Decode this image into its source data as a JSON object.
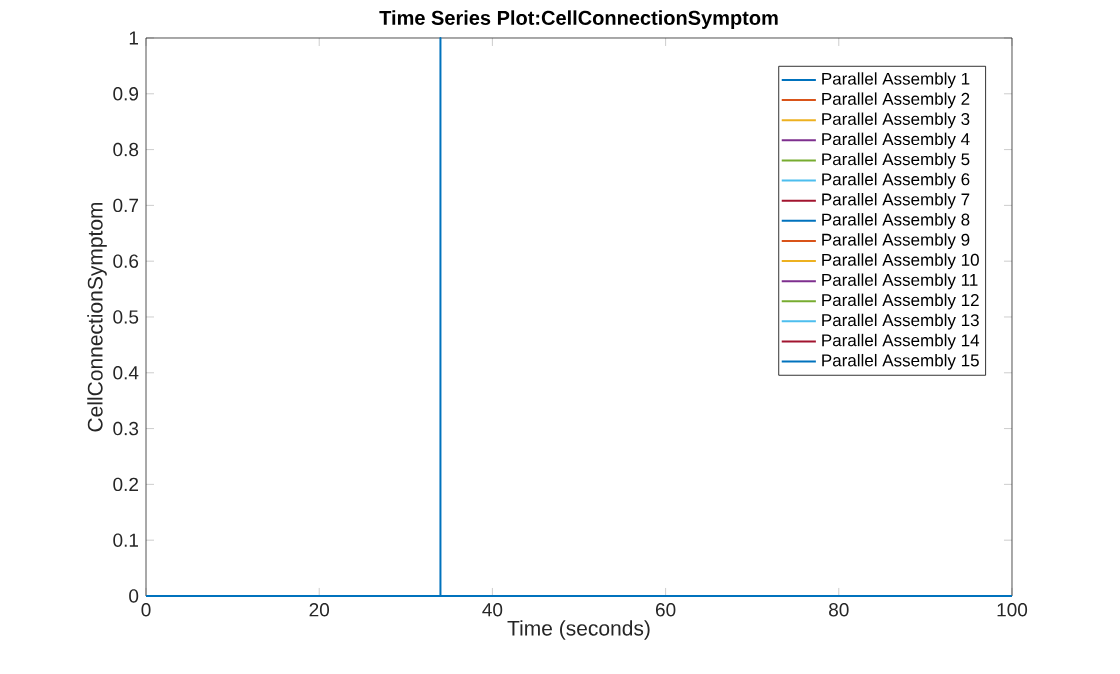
{
  "chart_data": {
    "type": "line",
    "title": "Time Series Plot:CellConnectionSymptom",
    "xlabel": "Time (seconds)",
    "ylabel": "CellConnectionSymptom",
    "xlim": [
      0,
      100
    ],
    "ylim": [
      0,
      1
    ],
    "xticks": [
      0,
      20,
      40,
      60,
      80,
      100
    ],
    "yticks": [
      0,
      0.1,
      0.2,
      0.3,
      0.4,
      0.5,
      0.6,
      0.7,
      0.8,
      0.9,
      1
    ],
    "legend": "top right",
    "grid": false,
    "series": [
      {
        "name": "Parallel Assembly 1",
        "color": "#0072bd",
        "values": [
          null,
          null
        ]
      },
      {
        "name": "Parallel Assembly 2",
        "color": "#d95319",
        "values": [
          null,
          null
        ]
      },
      {
        "name": "Parallel Assembly 3",
        "color": "#edb120",
        "values": [
          null,
          null
        ]
      },
      {
        "name": "Parallel Assembly 4",
        "color": "#7e2f8e",
        "values": [
          null,
          null
        ]
      },
      {
        "name": "Parallel Assembly 5",
        "color": "#77ac30",
        "values": [
          null,
          null
        ]
      },
      {
        "name": "Parallel Assembly 6",
        "color": "#4dbeee",
        "values": [
          null,
          null
        ]
      },
      {
        "name": "Parallel Assembly 7",
        "color": "#a2142f",
        "values": [
          null,
          null
        ]
      },
      {
        "name": "Parallel Assembly 8",
        "color": "#0072bd",
        "values": [
          null,
          null
        ]
      },
      {
        "name": "Parallel Assembly 9",
        "color": "#d95319",
        "values": [
          null,
          null
        ]
      },
      {
        "name": "Parallel Assembly 10",
        "color": "#edb120",
        "values": [
          null,
          null
        ]
      },
      {
        "name": "Parallel Assembly 11",
        "color": "#7e2f8e",
        "values": [
          null,
          null
        ]
      },
      {
        "name": "Parallel Assembly 12",
        "color": "#77ac30",
        "values": [
          null,
          null
        ]
      },
      {
        "name": "Parallel Assembly 13",
        "color": "#4dbeee",
        "values": [
          null,
          null
        ]
      },
      {
        "name": "Parallel Assembly 14",
        "color": "#a2142f",
        "values": [
          null,
          null
        ]
      },
      {
        "name": "Parallel Assembly 15",
        "color": "#0072bd",
        "x": [
          0,
          34,
          34,
          34,
          100
        ],
        "values": [
          0,
          0,
          1,
          0,
          0
        ]
      }
    ]
  }
}
